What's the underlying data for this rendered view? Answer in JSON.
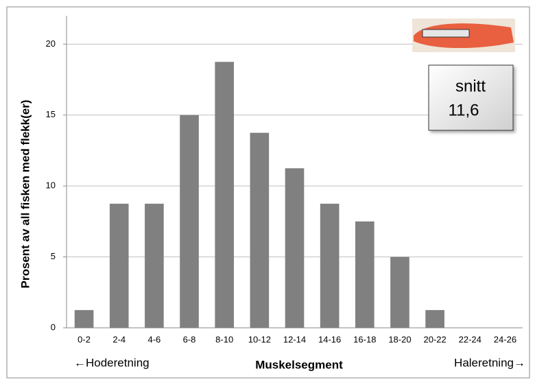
{
  "chart_data": {
    "type": "bar",
    "y_label": "Prosent av all fisken med flekk(er)",
    "x_label": "Muskelsegment",
    "left_note": "←Hoderetning",
    "right_note": "Haleretning→",
    "annotation": [
      "snitt",
      "11,6"
    ],
    "categories": [
      "0-2",
      "2-4",
      "4-6",
      "6-8",
      "8-10",
      "10-12",
      "12-14",
      "14-16",
      "16-18",
      "18-20",
      "20-22",
      "22-24",
      "24-26"
    ],
    "values": [
      1.25,
      8.75,
      8.75,
      15,
      18.75,
      13.75,
      11.25,
      8.75,
      7.5,
      5,
      1.25,
      0,
      0
    ],
    "color": "#808080",
    "ylim": [
      0,
      22
    ],
    "yticks": [
      0,
      5,
      10,
      15,
      20
    ],
    "grid": true
  }
}
